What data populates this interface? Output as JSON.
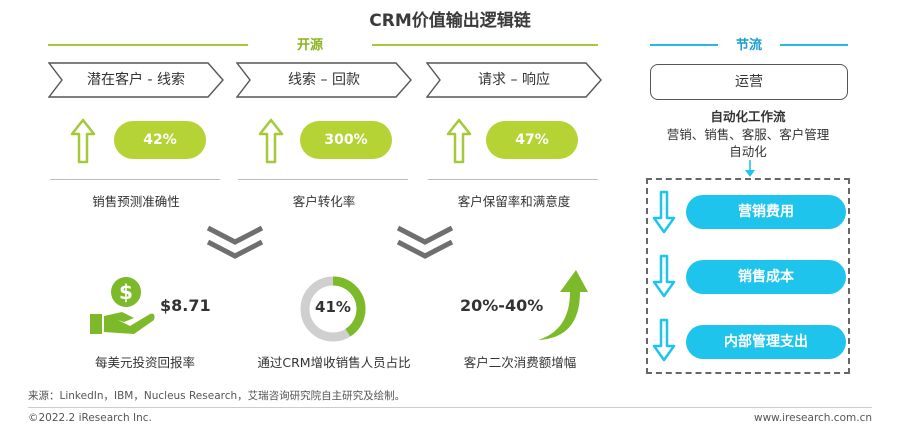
{
  "title": "CRM价值输出逻辑链",
  "open_source": {
    "label": "开源",
    "line_color": "#a6c93a",
    "stages": [
      {
        "label": "潜在客户 - 线索",
        "metric": "42%",
        "metric_label": "销售预测准确性"
      },
      {
        "label": "线索 – 回款",
        "metric": "300%",
        "metric_label": "客户转化率"
      },
      {
        "label": "请求 – 响应",
        "metric": "47%",
        "metric_label": "客户保留率和满意度"
      }
    ]
  },
  "throttle": {
    "label": "节流",
    "line_color": "#29b8e6",
    "ops_label": "运营",
    "auto_title": "自动化工作流",
    "auto_desc_line1": "营销、销售、客服、客户管理",
    "auto_desc_line2": "自动化",
    "cost_items": [
      "营销费用",
      "销售成本",
      "内部管理支出"
    ]
  },
  "bottom_metrics": [
    {
      "value": "$8.71",
      "label": "每美元投资回报率",
      "icon": "dollar-hand-icon"
    },
    {
      "value": "41%",
      "label": "通过CRM增收销售人员占比",
      "icon": "donut-ring-icon",
      "fill_fraction": 0.41
    },
    {
      "value": "20%-40%",
      "label": "客户二次消费额增幅",
      "icon": "curved-up-arrow-icon"
    }
  ],
  "colors": {
    "green": "#a6c93a",
    "pill_green": "#b5d334",
    "cyan": "#1fc4ec",
    "gray_chevron": "#6f6f6f"
  },
  "source": "来源：LinkedIn，IBM，Nucleus Research，艾瑞咨询研究院自主研究及绘制。",
  "copyright": "©2022.2 iResearch Inc.",
  "website": "www.iresearch.com.cn"
}
